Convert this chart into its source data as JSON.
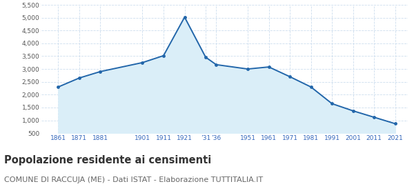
{
  "years": [
    1861,
    1871,
    1881,
    1901,
    1911,
    1921,
    1931,
    1936,
    1951,
    1961,
    1971,
    1981,
    1991,
    2001,
    2011,
    2021
  ],
  "population": [
    2300,
    2650,
    2900,
    3250,
    3520,
    5020,
    3460,
    3170,
    3000,
    3080,
    2700,
    2300,
    1650,
    1370,
    1120,
    870
  ],
  "x_tick_years": [
    1861,
    1871,
    1881,
    1901,
    1911,
    1921,
    1931,
    1936,
    1951,
    1961,
    1971,
    1981,
    1991,
    2001,
    2011,
    2021
  ],
  "x_tick_labels": [
    "1861",
    "1871",
    "1881",
    "1901",
    "1911",
    "1921",
    "’31",
    "’36",
    "1951",
    "1961",
    "1971",
    "1981",
    "1991",
    "2001",
    "2011",
    "2021"
  ],
  "ylim": [
    500,
    5500
  ],
  "yticks": [
    500,
    1000,
    1500,
    2000,
    2500,
    3000,
    3500,
    4000,
    4500,
    5000,
    5500
  ],
  "ytick_labels": [
    "500",
    "1,000",
    "1,500",
    "2,000",
    "2,500",
    "3,000",
    "3,500",
    "4,000",
    "4,500",
    "5,000",
    "5,500"
  ],
  "line_color": "#2266aa",
  "fill_color": "#daeef8",
  "marker_color": "#2266aa",
  "grid_color": "#ccddee",
  "background_color": "#ffffff",
  "title": "Popolazione residente ai censimenti",
  "subtitle": "COMUNE DI RACCUJA (ME) - Dati ISTAT - Elaborazione TUTTITALIA.IT",
  "title_fontsize": 10.5,
  "subtitle_fontsize": 8,
  "xlim_left": 1853,
  "xlim_right": 2027
}
